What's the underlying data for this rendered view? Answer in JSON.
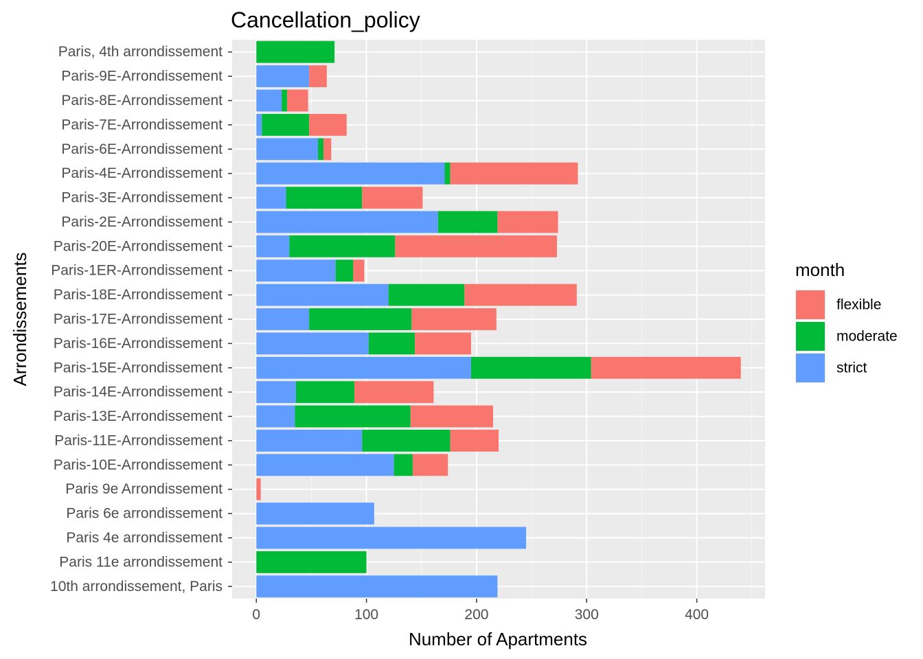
{
  "chart_data": {
    "type": "bar",
    "orientation": "horizontal",
    "stacked": true,
    "title": "Cancellation_policy",
    "xlabel": "Number of Apartments",
    "ylabel": "Arrondissements",
    "xlim": [
      -22,
      462
    ],
    "xticks": [
      0,
      100,
      200,
      300,
      400
    ],
    "grid": true,
    "legend": {
      "title": "month",
      "position": "right"
    },
    "categories": [
      "10th arrondissement, Paris",
      "Paris 11e arrondissement",
      "Paris 4e arrondissement",
      "Paris 6e arrondissement",
      "Paris 9e Arrondissement",
      "Paris-10E-Arrondissement",
      "Paris-11E-Arrondissement",
      "Paris-13E-Arrondissement",
      "Paris-14E-Arrondissement",
      "Paris-15E-Arrondissement",
      "Paris-16E-Arrondissement",
      "Paris-17E-Arrondissement",
      "Paris-18E-Arrondissement",
      "Paris-1ER-Arrondissement",
      "Paris-20E-Arrondissement",
      "Paris-2E-Arrondissement",
      "Paris-3E-Arrondissement",
      "Paris-4E-Arrondissement",
      "Paris-6E-Arrondissement",
      "Paris-7E-Arrondissement",
      "Paris-8E-Arrondissement",
      "Paris-9E-Arrondissement",
      "Paris, 4th arrondissement"
    ],
    "series": [
      {
        "name": "strict",
        "color": "#619CFF",
        "values": [
          219,
          0,
          245,
          107,
          0,
          125,
          96,
          35,
          36,
          195,
          102,
          48,
          120,
          72,
          30,
          165,
          27,
          171,
          56,
          5,
          23,
          48,
          0
        ]
      },
      {
        "name": "moderate",
        "color": "#00BA38",
        "values": [
          0,
          100,
          0,
          0,
          0,
          17,
          80,
          105,
          53,
          109,
          42,
          93,
          69,
          16,
          96,
          54,
          69,
          5,
          5,
          43,
          5,
          0,
          71
        ]
      },
      {
        "name": "flexible",
        "color": "#F8766D",
        "values": [
          0,
          0,
          0,
          0,
          4,
          32,
          44,
          75,
          72,
          136,
          51,
          77,
          102,
          10,
          147,
          55,
          55,
          116,
          7,
          34,
          19,
          16,
          0
        ]
      }
    ]
  },
  "colors": {
    "panel_bg": "#EBEBEB",
    "grid_major": "#FFFFFF",
    "tick_text": "#4D4D4D",
    "tick_mark": "#333333"
  }
}
